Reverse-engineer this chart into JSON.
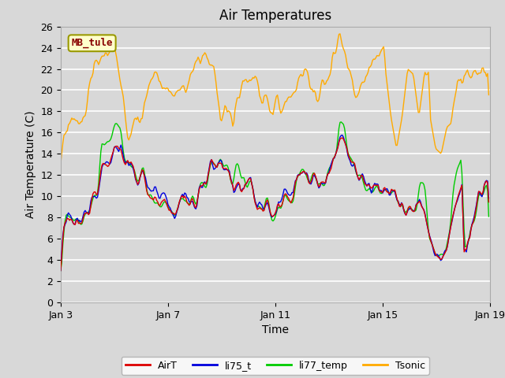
{
  "title": "Air Temperatures",
  "xlabel": "Time",
  "ylabel": "Air Temperature (C)",
  "ylim": [
    0,
    26
  ],
  "yticks": [
    0,
    2,
    4,
    6,
    8,
    10,
    12,
    14,
    16,
    18,
    20,
    22,
    24,
    26
  ],
  "xtick_labels": [
    "Jan 3",
    "Jan 7",
    "Jan 11",
    "Jan 15",
    "Jan 19"
  ],
  "xtick_positions": [
    0,
    96,
    192,
    288,
    384
  ],
  "colors": {
    "AirT": "#dd0000",
    "li75_t": "#0000dd",
    "li77_temp": "#00cc00",
    "Tsonic": "#ffaa00"
  },
  "background_color": "#d8d8d8",
  "axes_bg_color": "#d8d8d8",
  "site_label": "MB_tule",
  "site_label_color": "#880000",
  "site_label_bg": "#ffffcc",
  "site_label_border": "#999900",
  "grid_color": "#ffffff",
  "title_fontsize": 12,
  "axis_fontsize": 10,
  "tick_fontsize": 9
}
